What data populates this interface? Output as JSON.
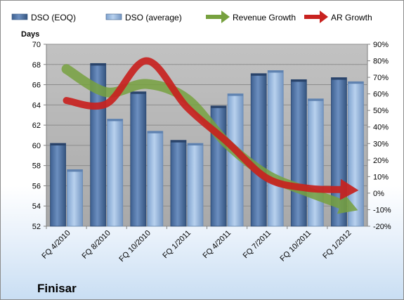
{
  "chart_data": {
    "type": "bar",
    "company": "Finisar",
    "y_left_title": "Days",
    "categories": [
      "FQ 4/2010",
      "FQ 8/2010",
      "FQ 10/2010",
      "FQ 1/2011",
      "FQ 4/2011",
      "FQ 7/2011",
      "FQ 10/2011",
      "FQ 1/2012"
    ],
    "series": [
      {
        "name": "DSO (EOQ)",
        "values": [
          60.2,
          68.1,
          65.3,
          60.5,
          63.9,
          67.1,
          66.5,
          66.7
        ],
        "color": "#4a6e9f"
      },
      {
        "name": "DSO (average)",
        "values": [
          57.6,
          62.6,
          61.4,
          60.2,
          65.1,
          67.4,
          64.6,
          66.3
        ],
        "color": "#96b6dd"
      }
    ],
    "trends": [
      {
        "name": "Revenue Growth",
        "values": [
          75,
          61,
          66,
          57,
          30,
          11,
          1,
          -8
        ],
        "color": "#77a13f"
      },
      {
        "name": "AR Growth",
        "values": [
          56,
          54,
          80,
          52,
          31,
          9,
          3,
          2
        ],
        "color": "#c8221f"
      }
    ],
    "ylim_left": [
      52,
      70
    ],
    "yticks_left": [
      "52",
      "54",
      "56",
      "58",
      "60",
      "62",
      "64",
      "66",
      "68",
      "70"
    ],
    "ylim_right": [
      -20,
      90
    ],
    "yticks_right": [
      "-20%",
      "-10%",
      "0%",
      "10%",
      "20%",
      "30%",
      "40%",
      "50%",
      "60%",
      "70%",
      "80%",
      "90%"
    ],
    "grid": true,
    "legend_position": "top"
  }
}
